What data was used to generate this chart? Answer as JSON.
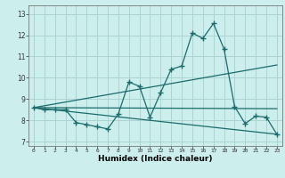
{
  "title": "",
  "xlabel": "Humidex (Indice chaleur)",
  "background_color": "#cceeed",
  "grid_color": "#aad4d3",
  "line_color": "#1a6b6b",
  "xlim": [
    -0.5,
    23.5
  ],
  "ylim": [
    6.8,
    13.4
  ],
  "xticks": [
    0,
    1,
    2,
    3,
    4,
    5,
    6,
    7,
    8,
    9,
    10,
    11,
    12,
    13,
    14,
    15,
    16,
    17,
    18,
    19,
    20,
    21,
    22,
    23
  ],
  "yticks": [
    7,
    8,
    9,
    10,
    11,
    12,
    13
  ],
  "series1_x": [
    0,
    1,
    2,
    3,
    4,
    5,
    6,
    7,
    8,
    9,
    10,
    11,
    12,
    13,
    14,
    15,
    16,
    17,
    18,
    19,
    20,
    21,
    22,
    23
  ],
  "series1_y": [
    8.6,
    8.5,
    8.5,
    8.5,
    7.9,
    7.8,
    7.7,
    7.6,
    8.3,
    9.8,
    9.6,
    8.15,
    9.3,
    10.4,
    10.55,
    12.1,
    11.85,
    12.55,
    11.35,
    8.65,
    7.85,
    8.2,
    8.15,
    7.35
  ],
  "series2_x": [
    0,
    23
  ],
  "series2_y": [
    8.6,
    10.6
  ],
  "series3_x": [
    0,
    23
  ],
  "series3_y": [
    8.6,
    8.55
  ],
  "series4_x": [
    0,
    23
  ],
  "series4_y": [
    8.6,
    7.35
  ]
}
